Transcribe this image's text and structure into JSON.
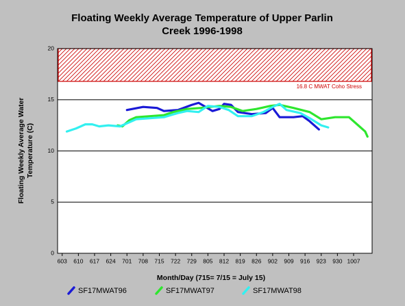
{
  "chart_data": {
    "type": "line",
    "title": [
      "Floating Weekly Average Temperature of Upper Parlin",
      "Creek 1996-1998"
    ],
    "x_label": "Month/Day (715= 7/15 = July 15)",
    "y_label": [
      "Floating Weekly Average Water",
      "Temperature (C)"
    ],
    "xlim": [
      152,
      288
    ],
    "xticks": [
      {
        "value": 154,
        "label": "603"
      },
      {
        "value": 161,
        "label": "610"
      },
      {
        "value": 168,
        "label": "617"
      },
      {
        "value": 175,
        "label": "624"
      },
      {
        "value": 182,
        "label": "701"
      },
      {
        "value": 189,
        "label": "708"
      },
      {
        "value": 196,
        "label": "715"
      },
      {
        "value": 203,
        "label": "722"
      },
      {
        "value": 210,
        "label": "729"
      },
      {
        "value": 217,
        "label": "805"
      },
      {
        "value": 224,
        "label": "812"
      },
      {
        "value": 231,
        "label": "819"
      },
      {
        "value": 238,
        "label": "826"
      },
      {
        "value": 245,
        "label": "902"
      },
      {
        "value": 252,
        "label": "909"
      },
      {
        "value": 259,
        "label": "916"
      },
      {
        "value": 266,
        "label": "923"
      },
      {
        "value": 273,
        "label": "930"
      },
      {
        "value": 280,
        "label": "1007"
      }
    ],
    "ylim": [
      0,
      20
    ],
    "yticks": [
      0,
      5,
      10,
      15,
      20
    ],
    "grid": true,
    "band": {
      "from": 16.8,
      "to": 20,
      "color": "#cc0000",
      "label": "16.8 C MWAT Coho Stress"
    },
    "series": [
      {
        "name": "SF17MWAT96",
        "color": "#1a1ad6",
        "x": [
          182,
          189,
          195,
          198,
          204,
          210,
          213,
          216,
          219,
          222,
          224,
          227,
          230,
          236,
          242,
          245,
          248,
          254,
          258,
          261,
          265
        ],
        "values": [
          14.0,
          14.3,
          14.2,
          13.9,
          14.0,
          14.5,
          14.7,
          14.3,
          13.9,
          14.1,
          14.6,
          14.5,
          13.8,
          13.6,
          13.7,
          14.2,
          13.3,
          13.3,
          13.4,
          12.9,
          12.1
        ]
      },
      {
        "name": "SF17MWAT97",
        "color": "#2ee62e",
        "x": [
          178,
          180,
          183,
          186,
          192,
          198,
          202,
          208,
          214,
          222,
          227,
          232,
          238,
          244,
          248,
          254,
          261,
          266,
          272,
          278,
          282,
          285,
          286
        ],
        "values": [
          12.5,
          12.4,
          13.0,
          13.3,
          13.4,
          13.5,
          13.8,
          14.1,
          14.2,
          14.4,
          14.3,
          13.9,
          14.1,
          14.4,
          14.5,
          14.2,
          13.8,
          13.1,
          13.3,
          13.3,
          12.5,
          11.9,
          11.4
        ]
      },
      {
        "name": "SF17MWAT98",
        "color": "#33f0f0",
        "x": [
          156,
          160,
          164,
          167,
          170,
          174,
          179,
          183,
          186,
          192,
          198,
          204,
          208,
          213,
          217,
          222,
          226,
          230,
          236,
          241,
          245,
          248,
          251,
          257,
          261,
          266,
          269
        ],
        "values": [
          11.9,
          12.2,
          12.6,
          12.6,
          12.4,
          12.5,
          12.4,
          12.8,
          13.1,
          13.2,
          13.3,
          13.7,
          13.9,
          13.8,
          14.4,
          14.3,
          14.0,
          13.4,
          13.4,
          13.8,
          14.3,
          14.6,
          14.0,
          13.7,
          13.2,
          12.5,
          12.3
        ]
      }
    ]
  }
}
